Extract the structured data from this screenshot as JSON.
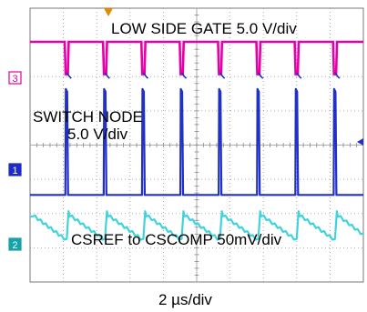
{
  "chart_data": {
    "type": "line",
    "title": "",
    "xlabel": "2 µs/div",
    "ylabel": "",
    "grid": true,
    "x_divisions": 10,
    "y_divisions": 8,
    "annotations": {
      "gate": "LOW SIDE GATE 5.0 V/div",
      "switch_line1": "SWITCH NODE",
      "switch_line2": "5.0 V/div",
      "csref": "CSREF to CSCOMP 50mV/div"
    },
    "channel_markers": [
      {
        "name": "3",
        "color": "#e6009e"
      },
      {
        "name": "1",
        "color": "#1f2bc9"
      },
      {
        "name": "2",
        "color": "#14a3a8"
      }
    ],
    "series": [
      {
        "name": "3",
        "color": "#e600a8",
        "description_key": "low-side-gate",
        "pulse_times_div": [
          1.1,
          2.25,
          3.4,
          4.55,
          5.7,
          6.85,
          8.0,
          9.15
        ],
        "high_level_div": 0.0,
        "low_level_div": 1.0
      },
      {
        "name": "1",
        "color": "#2030c8",
        "description_key": "switch-node",
        "spike_times_div": [
          1.1,
          2.25,
          3.4,
          4.55,
          5.7,
          6.85,
          8.0,
          9.15
        ],
        "baseline_div": 4.5
      },
      {
        "name": "2",
        "color": "#3fd3db",
        "description_key": "csref-to-cscomp",
        "ramp_times_div": [
          1.1,
          2.25,
          3.4,
          4.55,
          5.7,
          6.85,
          8.0,
          9.15
        ],
        "baseline_div": 5.4
      }
    ]
  }
}
